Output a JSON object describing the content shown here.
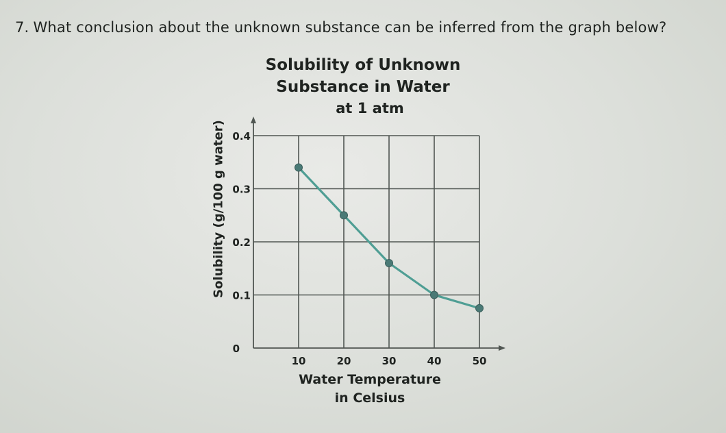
{
  "question": {
    "number": "7.",
    "text": "What conclusion about the unknown substance can be inferred from the graph below?"
  },
  "chart_data": {
    "type": "line",
    "title_lines": [
      "Solubility of Unknown",
      "Substance in Water",
      "at 1 atm"
    ],
    "xlabel_lines": [
      "Water Temperature",
      "in Celsius"
    ],
    "ylabel": "Solubility (g/100 g water)",
    "x_ticks": [
      "10",
      "20",
      "30",
      "40",
      "50"
    ],
    "y_ticks": [
      "0",
      "0.1",
      "0.2",
      "0.3",
      "0.4"
    ],
    "xlim": [
      0,
      50
    ],
    "ylim": [
      0,
      0.4
    ],
    "grid": true,
    "series": [
      {
        "x": [
          10,
          20,
          30,
          40,
          50
        ],
        "y": [
          0.34,
          0.25,
          0.16,
          0.1,
          0.075
        ]
      }
    ],
    "colors": {
      "line": "#4f9e94",
      "marker": "#4a7a76",
      "grid": "#505652",
      "text": "#1f2320"
    }
  }
}
